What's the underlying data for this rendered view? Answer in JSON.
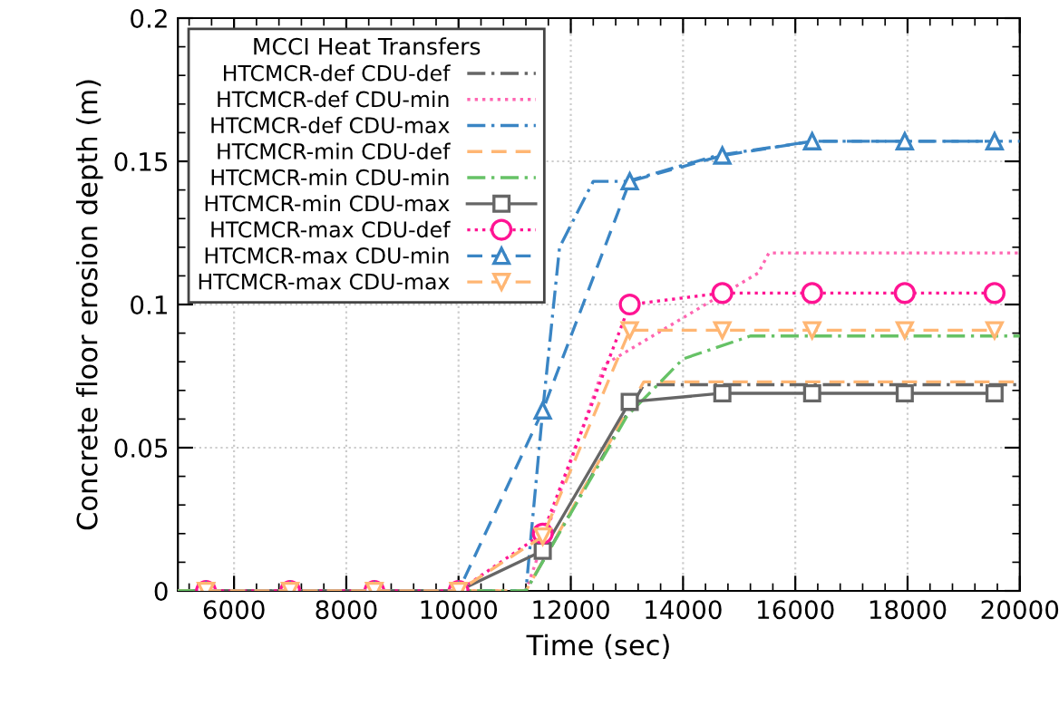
{
  "chart_data": {
    "type": "line",
    "xlabel": "Time (sec)",
    "ylabel": "Concrete floor erosion depth (m)",
    "legend_title": "MCCI Heat Transfers",
    "legend": "top left",
    "grid": true,
    "xlim": [
      5000,
      20000
    ],
    "xticks": [
      6000,
      8000,
      10000,
      12000,
      14000,
      16000,
      18000,
      20000
    ],
    "ylim": [
      0,
      0.2
    ],
    "yticks": [
      0,
      0.05,
      0.1,
      0.15,
      0.2
    ],
    "series": [
      {
        "name": "HTCMCR-def CDU-def",
        "color": "#666666",
        "line_style": "dashdot",
        "marker": "none",
        "x": [
          5000,
          11200,
          13300,
          20000
        ],
        "values": [
          0,
          0,
          0.072,
          0.072
        ]
      },
      {
        "name": "HTCMCR-def CDU-min",
        "color": "#ff66b2",
        "line_style": "dotted",
        "marker": "none",
        "x": [
          5000,
          11200,
          12600,
          15340,
          15530,
          20000
        ],
        "values": [
          0,
          0,
          0.079,
          0.111,
          0.118,
          0.118
        ]
      },
      {
        "name": "HTCMCR-def CDU-max",
        "color": "#3a85c4",
        "line_style": "dashdot",
        "marker": "none",
        "x": [
          5000,
          11200,
          11500,
          11800,
          12400,
          13000,
          14600,
          16300,
          20000
        ],
        "values": [
          0,
          0,
          0.063,
          0.12,
          0.143,
          0.143,
          0.152,
          0.157,
          0.157
        ]
      },
      {
        "name": "HTCMCR-min CDU-def",
        "color": "#ffb673",
        "line_style": "dashed",
        "marker": "none",
        "x": [
          5000,
          11200,
          13300,
          20000
        ],
        "values": [
          0,
          0,
          0.073,
          0.073
        ]
      },
      {
        "name": "HTCMCR-min CDU-min",
        "color": "#66c266",
        "line_style": "dashdot",
        "marker": "none",
        "x": [
          5000,
          11200,
          13000,
          14000,
          15200,
          20000
        ],
        "values": [
          0,
          0,
          0.061,
          0.081,
          0.089,
          0.089
        ]
      },
      {
        "name": "HTCMCR-min CDU-max",
        "color": "#666666",
        "line_style": "solid",
        "marker": "square",
        "x": [
          5500,
          7000,
          8500,
          10000,
          11500,
          13050,
          14700,
          16300,
          17950,
          19550
        ],
        "values": [
          0,
          0,
          0,
          0,
          0.014,
          0.066,
          0.069,
          0.069,
          0.069,
          0.069
        ]
      },
      {
        "name": "HTCMCR-max CDU-def",
        "color": "#ff1493",
        "line_style": "dotted",
        "marker": "circle",
        "x": [
          5500,
          7000,
          8500,
          10000,
          11500,
          13050,
          14700,
          16300,
          17950,
          19550
        ],
        "values": [
          0,
          0,
          0,
          0,
          0.02,
          0.1,
          0.104,
          0.104,
          0.104,
          0.104
        ]
      },
      {
        "name": "HTCMCR-max CDU-min",
        "color": "#3a85c4",
        "line_style": "dashed",
        "marker": "triangle",
        "x": [
          5500,
          7000,
          8500,
          10000,
          11500,
          13050,
          14700,
          16300,
          17950,
          19550
        ],
        "values": [
          0,
          0,
          0,
          0,
          0.063,
          0.143,
          0.152,
          0.157,
          0.157,
          0.157
        ]
      },
      {
        "name": "HTCMCR-max CDU-max",
        "color": "#ffb673",
        "line_style": "dashed",
        "marker": "triangle_down",
        "x": [
          5500,
          7000,
          8500,
          10000,
          11500,
          13050,
          14700,
          16300,
          17950,
          19550
        ],
        "values": [
          0,
          0,
          0,
          0,
          0.019,
          0.091,
          0.091,
          0.091,
          0.091,
          0.091
        ]
      }
    ]
  }
}
